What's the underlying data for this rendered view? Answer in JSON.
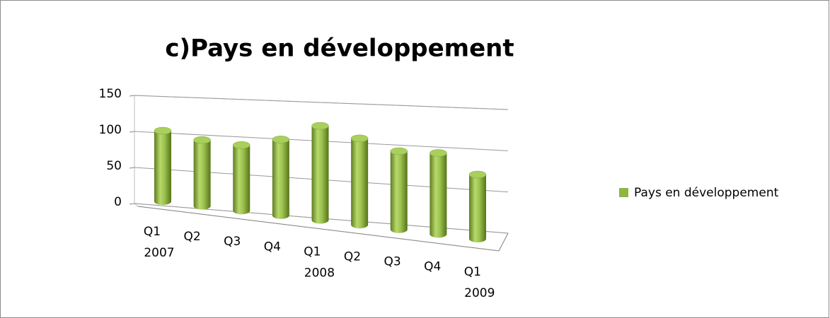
{
  "chart_data": {
    "type": "bar3d",
    "title": "c)Pays en développement",
    "categories": [
      "Q1 2007",
      "Q2",
      "Q3",
      "Q4",
      "Q1 2008",
      "Q2",
      "Q3",
      "Q4",
      "Q1 2009"
    ],
    "series": [
      {
        "name": "Pays en développement",
        "color": "#8fb545",
        "values": [
          98,
          90,
          88,
          100,
          122,
          110,
          98,
          100,
          78
        ]
      }
    ],
    "ylim": [
      0,
      150
    ],
    "yticks": [
      0,
      50,
      100,
      150
    ],
    "grid": true,
    "legend": "right"
  }
}
